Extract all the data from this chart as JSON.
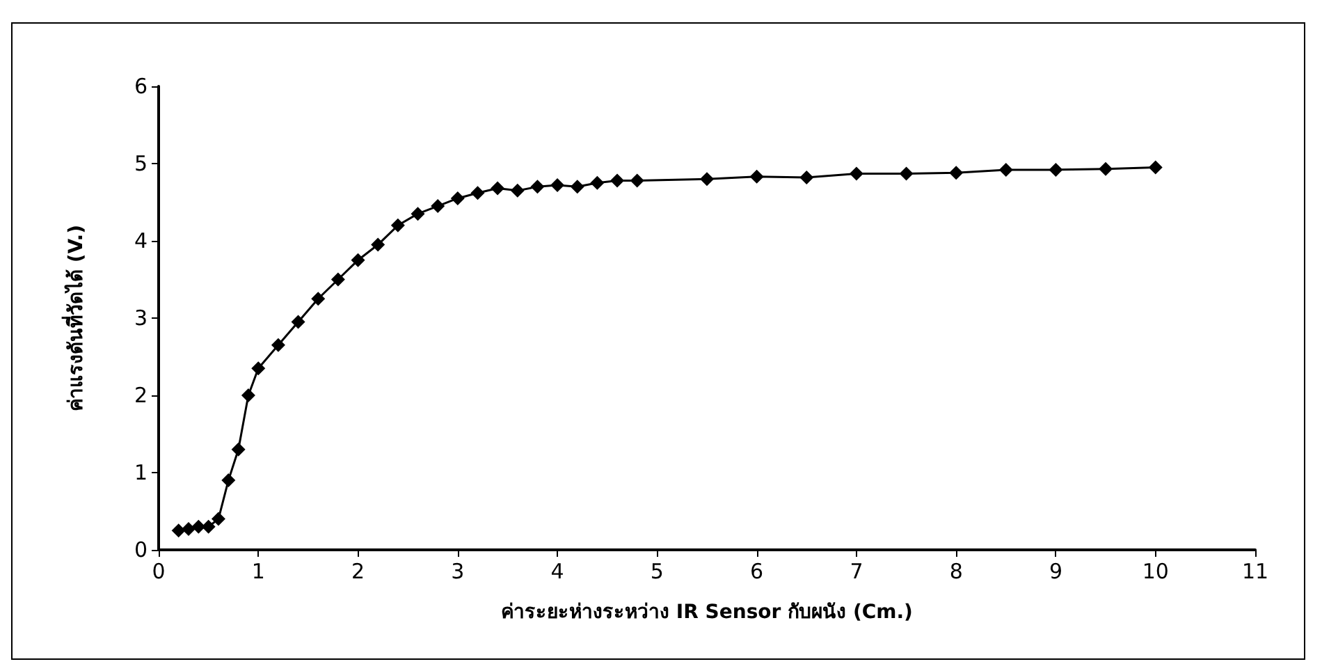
{
  "chart_data": {
    "type": "line",
    "xlabel": "ค่าระยะห่างระหว่าง IR Sensor กับผนัง (Cm.)",
    "ylabel": "ค่าแรงดันที่วัดได้ (V.)",
    "x": [
      0.2,
      0.3,
      0.4,
      0.5,
      0.6,
      0.7,
      0.8,
      0.9,
      1.0,
      1.2,
      1.4,
      1.6,
      1.8,
      2.0,
      2.2,
      2.4,
      2.6,
      2.8,
      3.0,
      3.2,
      3.4,
      3.6,
      3.8,
      4.0,
      4.2,
      4.4,
      4.6,
      4.8,
      5.5,
      6,
      6.5,
      7,
      7.5,
      8,
      8.5,
      9,
      9.5,
      10
    ],
    "series": [
      {
        "color": "#000000",
        "values": [
          0.25,
          0.27,
          0.3,
          0.3,
          0.4,
          0.9,
          1.3,
          2.0,
          2.35,
          2.65,
          2.95,
          3.25,
          3.5,
          3.75,
          3.95,
          4.2,
          4.35,
          4.45,
          4.55,
          4.62,
          4.68,
          4.65,
          4.7,
          4.72,
          4.7,
          4.75,
          4.78,
          4.78,
          4.8,
          4.83,
          4.82,
          4.87,
          4.87,
          4.88,
          4.92,
          4.92,
          4.93,
          4.95
        ]
      }
    ],
    "xlim": [
      0,
      11
    ],
    "xticks": [
      0,
      1,
      2,
      3,
      4,
      5,
      6,
      7,
      8,
      9,
      10,
      11
    ],
    "ylim": [
      0,
      6
    ],
    "yticks": [
      0,
      1,
      2,
      3,
      4,
      5,
      6
    ],
    "grid": false,
    "marker": "diamond",
    "line_style": "solid"
  }
}
